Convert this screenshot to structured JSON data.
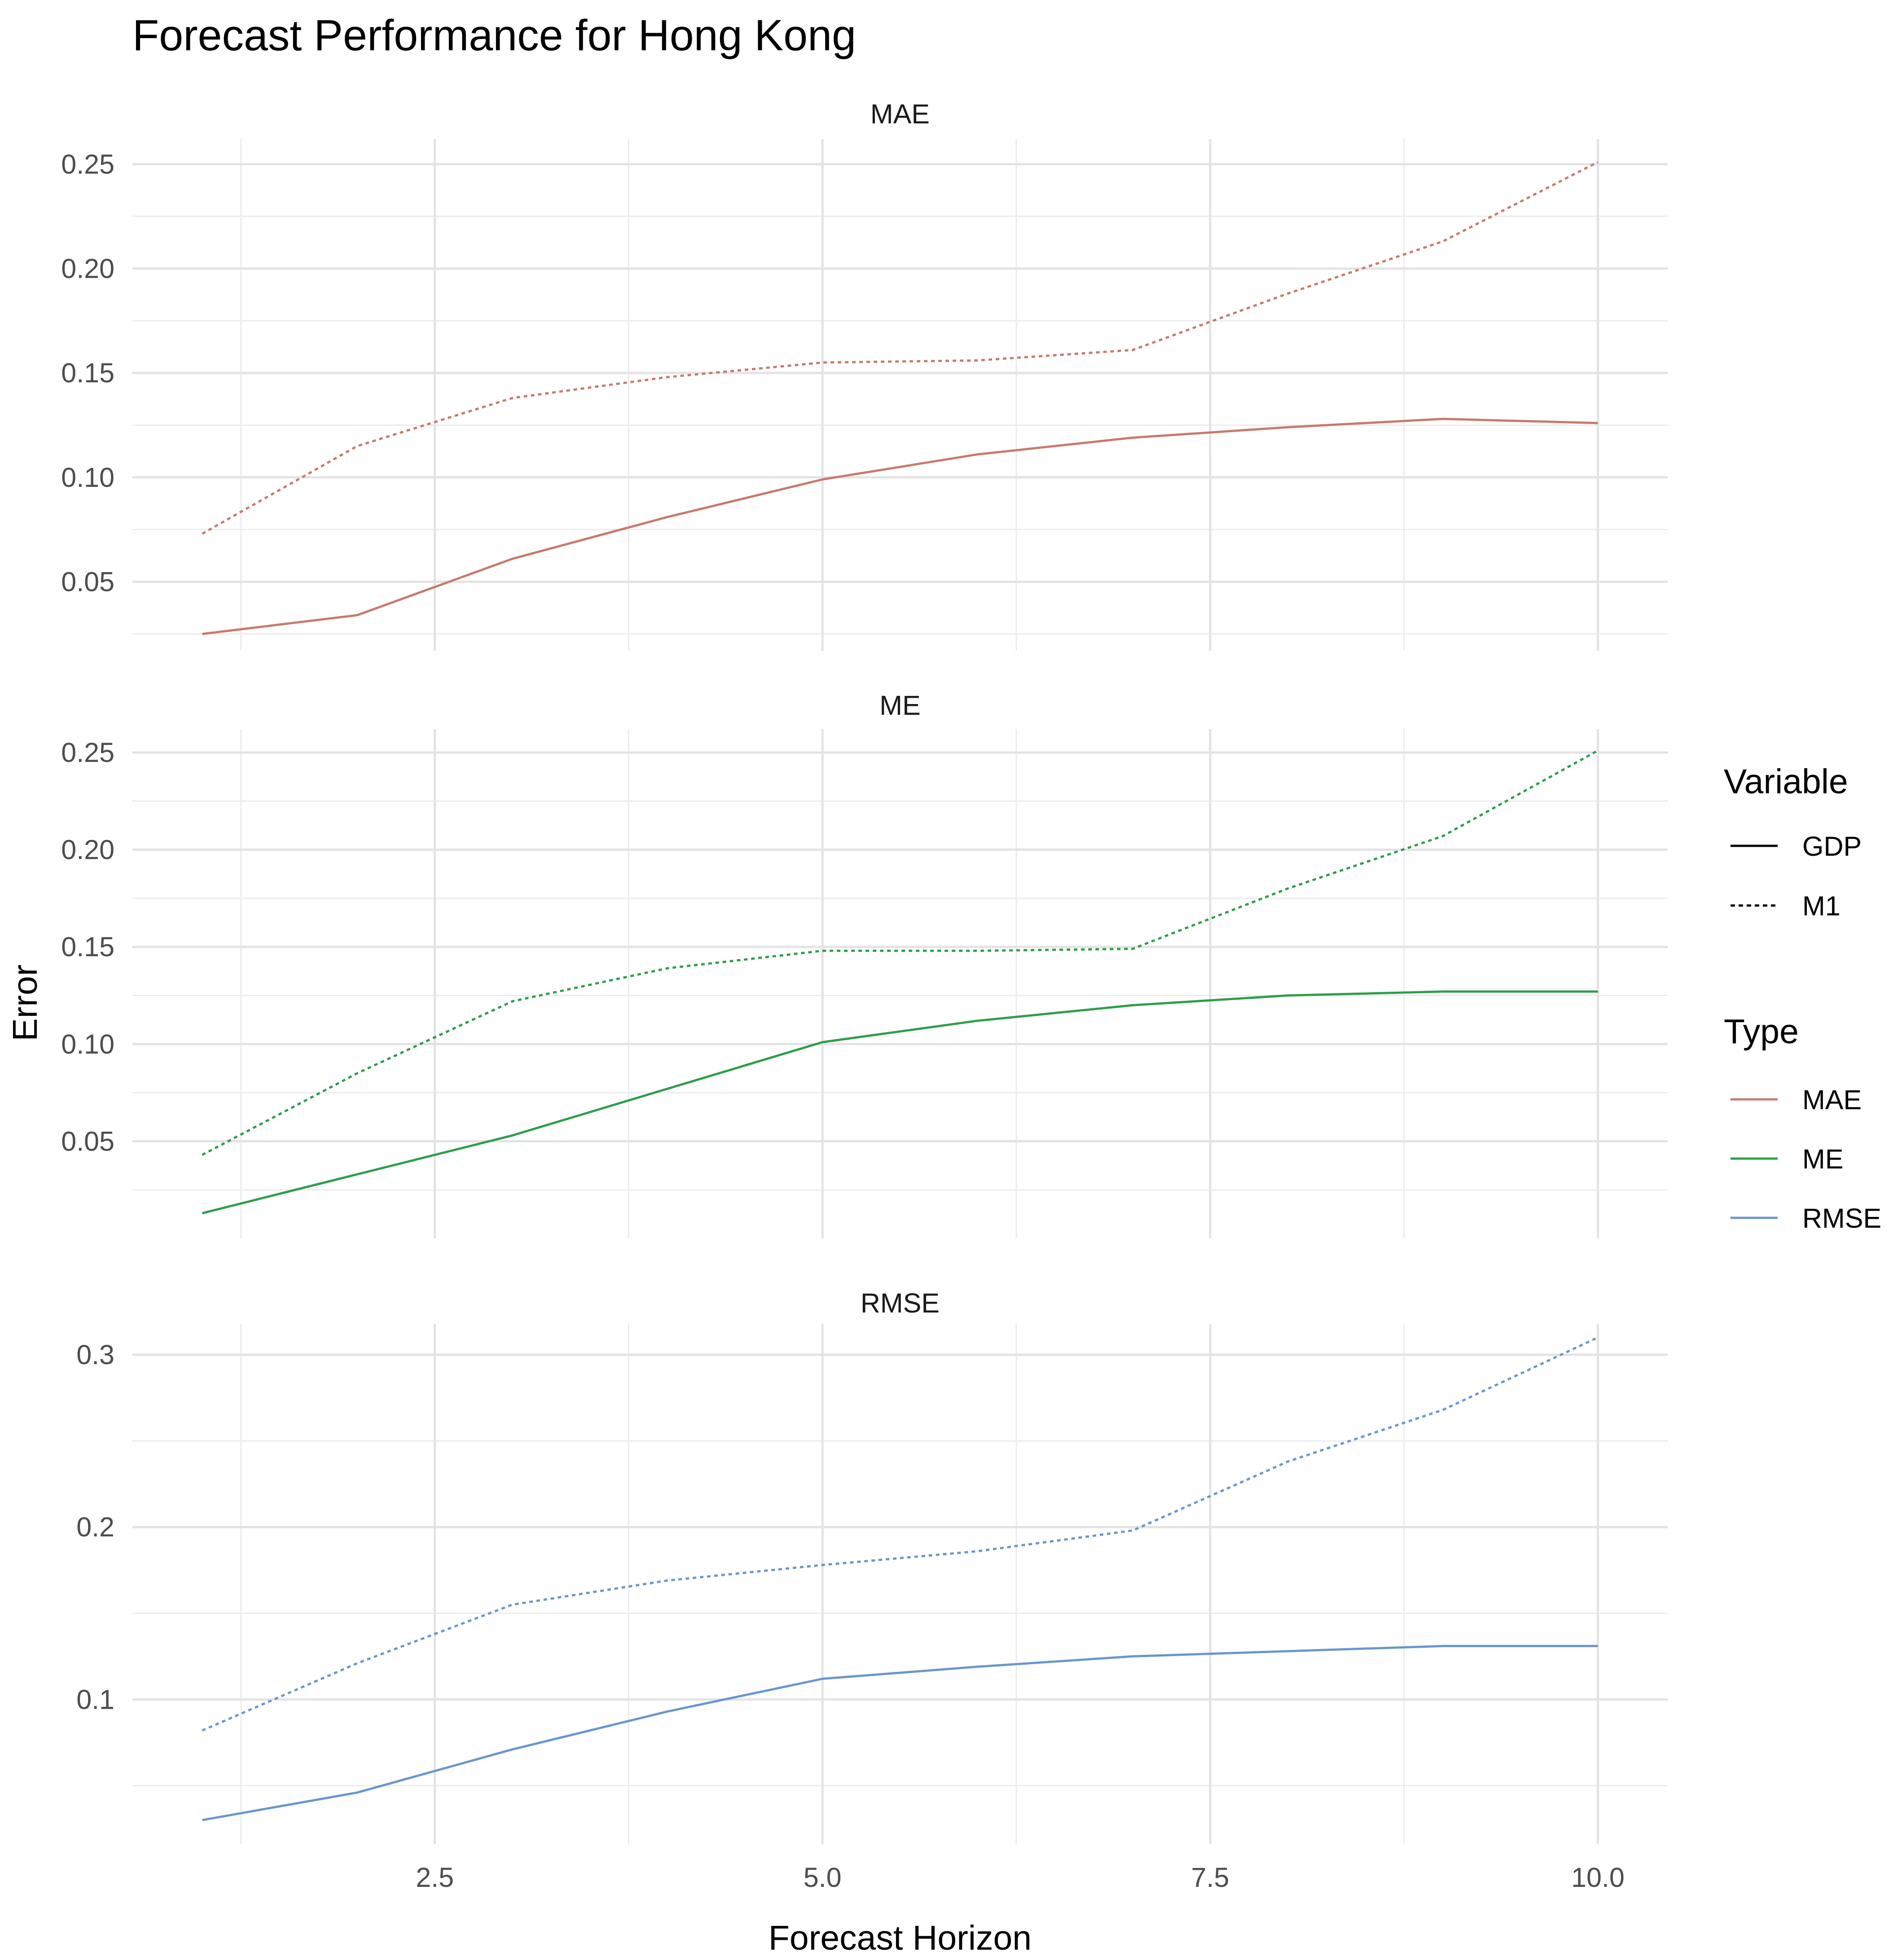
{
  "chart_data": {
    "type": "line",
    "title": "Forecast Performance for Hong Kong",
    "xlabel": "Forecast Horizon",
    "ylabel": "Error",
    "xlim": [
      0.55,
      10.45
    ],
    "x_ticks": [
      "2.5",
      "5.0",
      "7.5",
      "10.0"
    ],
    "grid": true,
    "legend_position": "right",
    "legend": {
      "variable_title": "Variable",
      "variables": [
        {
          "name": "GDP",
          "dash": "solid"
        },
        {
          "name": "M1",
          "dash": "dotted"
        }
      ],
      "type_title": "Type",
      "types": [
        {
          "name": "MAE",
          "color": "#C77A6E"
        },
        {
          "name": "ME",
          "color": "#2E9E4A"
        },
        {
          "name": "RMSE",
          "color": "#6A96CC"
        }
      ]
    },
    "x": [
      1,
      2,
      3,
      4,
      5,
      6,
      7,
      8,
      9,
      10
    ],
    "panels": [
      {
        "strip": "MAE",
        "color": "#C77A6E",
        "ylim": [
          0.017,
          0.262
        ],
        "y_ticks": [
          "0.05",
          "0.10",
          "0.15",
          "0.20",
          "0.25"
        ],
        "y_tick_values": [
          0.05,
          0.1,
          0.15,
          0.2,
          0.25
        ],
        "series": [
          {
            "name": "GDP",
            "values": [
              0.025,
              0.034,
              0.061,
              0.081,
              0.099,
              0.111,
              0.119,
              0.124,
              0.128,
              0.126
            ]
          },
          {
            "name": "M1",
            "values": [
              0.073,
              0.115,
              0.138,
              0.148,
              0.155,
              0.156,
              0.161,
              0.188,
              0.213,
              0.251
            ]
          }
        ]
      },
      {
        "strip": "ME",
        "color": "#2E9E4A",
        "ylim": [
          0.0,
          0.262
        ],
        "y_ticks": [
          "0.05",
          "0.10",
          "0.15",
          "0.20",
          "0.25"
        ],
        "y_tick_values": [
          0.05,
          0.1,
          0.15,
          0.2,
          0.25
        ],
        "series": [
          {
            "name": "GDP",
            "values": [
              0.013,
              0.033,
              0.053,
              0.077,
              0.101,
              0.112,
              0.12,
              0.125,
              0.127,
              0.127
            ]
          },
          {
            "name": "M1",
            "values": [
              0.043,
              0.085,
              0.122,
              0.139,
              0.148,
              0.148,
              0.149,
              0.18,
              0.207,
              0.251
            ]
          }
        ]
      },
      {
        "strip": "RMSE",
        "color": "#6A96CC",
        "ylim": [
          0.016,
          0.318
        ],
        "y_ticks": [
          "0.1",
          "0.2",
          "0.3"
        ],
        "y_tick_values": [
          0.1,
          0.2,
          0.3
        ],
        "series": [
          {
            "name": "GDP",
            "values": [
              0.03,
              0.046,
              0.071,
              0.093,
              0.112,
              0.119,
              0.125,
              0.128,
              0.131,
              0.131
            ]
          },
          {
            "name": "M1",
            "values": [
              0.082,
              0.121,
              0.155,
              0.169,
              0.178,
              0.186,
              0.198,
              0.238,
              0.268,
              0.31
            ]
          }
        ]
      }
    ]
  }
}
